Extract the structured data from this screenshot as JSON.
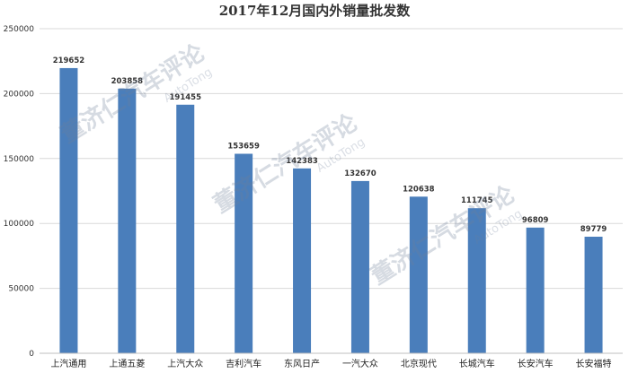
{
  "chart_data": {
    "type": "bar",
    "title": "2017年12月国内外销量批发数",
    "categories": [
      "上汽通用",
      "上通五菱",
      "上汽大众",
      "吉利汽车",
      "东风日产",
      "一汽大众",
      "北京现代",
      "长城汽车",
      "长安汽车",
      "长安福特"
    ],
    "values": [
      219652,
      203858,
      191455,
      153659,
      142383,
      132670,
      120638,
      111745,
      96809,
      89779
    ],
    "ylim": [
      0,
      250000
    ],
    "yticks": [
      0,
      50000,
      100000,
      150000,
      200000,
      250000
    ],
    "grid": true,
    "legend": "none",
    "bar_color": "#4a7ebb",
    "grid_color": "#d9d9d9"
  },
  "watermark": {
    "text": "董济仁汽车评论",
    "sub": "AutoTong"
  }
}
